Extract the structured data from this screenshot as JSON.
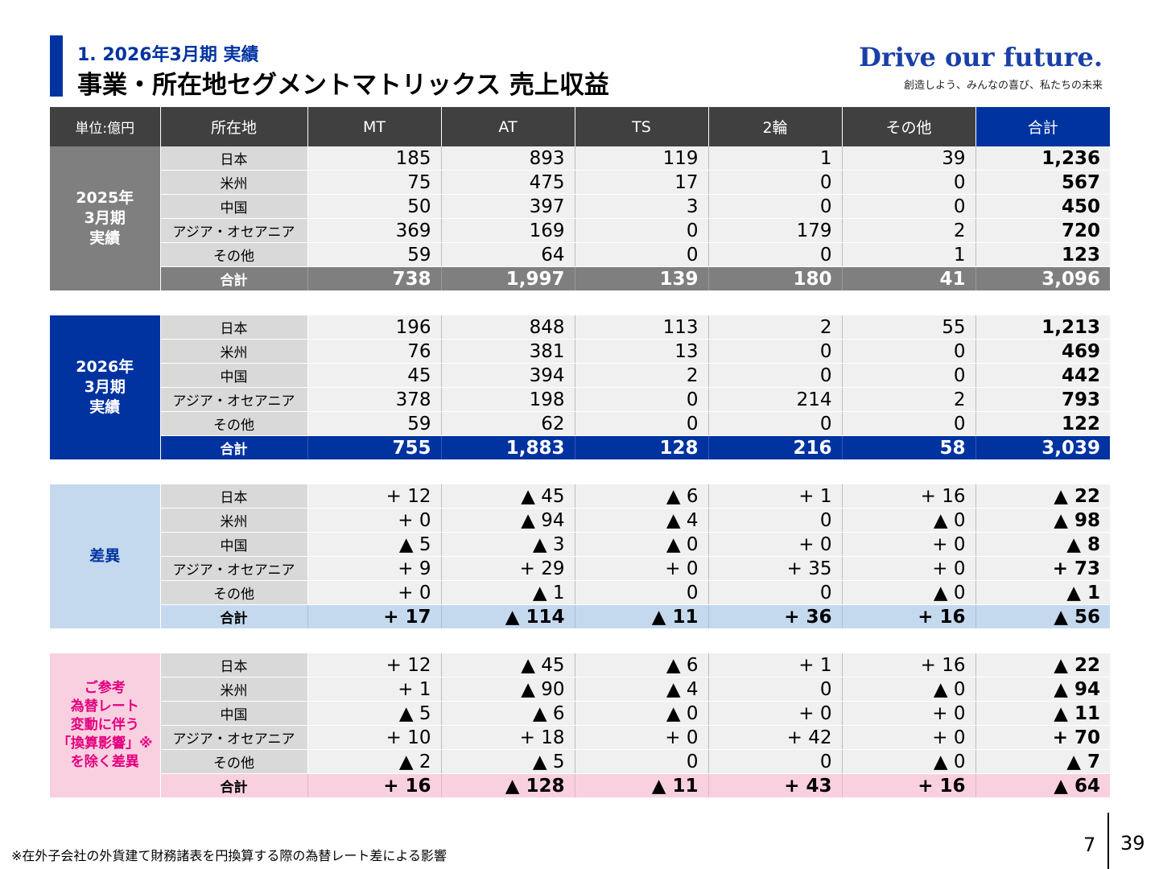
{
  "header": {
    "section": "1. 2026年3月期 実績",
    "title": "事業・所在地セグメントマトリックス 売上収益",
    "brand": "Drive our future.",
    "brand_tagline": "創造しよう、みんなの喜び、私たちの未来"
  },
  "table": {
    "columns": [
      "単位:億円",
      "所在地",
      "MT",
      "AT",
      "TS",
      "2輪",
      "その他",
      "合計"
    ],
    "groups": [
      {
        "label_lines": [
          "2025年",
          "3月期",
          "実績"
        ],
        "rows": [
          {
            "loc": "日本",
            "v": [
              "185",
              "893",
              "119",
              "1",
              "39",
              "1,236"
            ]
          },
          {
            "loc": "米州",
            "v": [
              "75",
              "475",
              "17",
              "0",
              "0",
              "567"
            ]
          },
          {
            "loc": "中国",
            "v": [
              "50",
              "397",
              "3",
              "0",
              "0",
              "450"
            ]
          },
          {
            "loc": "アジア・オセアニア",
            "v": [
              "369",
              "169",
              "0",
              "179",
              "2",
              "720"
            ]
          },
          {
            "loc": "その他",
            "v": [
              "59",
              "64",
              "0",
              "0",
              "1",
              "123"
            ]
          },
          {
            "loc": "合計",
            "v": [
              "738",
              "1,997",
              "139",
              "180",
              "41",
              "3,096"
            ]
          }
        ]
      },
      {
        "label_lines": [
          "2026年",
          "3月期",
          "実績"
        ],
        "rows": [
          {
            "loc": "日本",
            "v": [
              "196",
              "848",
              "113",
              "2",
              "55",
              "1,213"
            ]
          },
          {
            "loc": "米州",
            "v": [
              "76",
              "381",
              "13",
              "0",
              "0",
              "469"
            ]
          },
          {
            "loc": "中国",
            "v": [
              "45",
              "394",
              "2",
              "0",
              "0",
              "442"
            ]
          },
          {
            "loc": "アジア・オセアニア",
            "v": [
              "378",
              "198",
              "0",
              "214",
              "2",
              "793"
            ]
          },
          {
            "loc": "その他",
            "v": [
              "59",
              "62",
              "0",
              "0",
              "0",
              "122"
            ]
          },
          {
            "loc": "合計",
            "v": [
              "755",
              "1,883",
              "128",
              "216",
              "58",
              "3,039"
            ]
          }
        ]
      },
      {
        "label_lines": [
          "差異"
        ],
        "rows": [
          {
            "loc": "日本",
            "v": [
              "+ 12",
              "▲ 45",
              "▲ 6",
              "+ 1",
              "+ 16",
              "▲ 22"
            ]
          },
          {
            "loc": "米州",
            "v": [
              "+ 0",
              "▲ 94",
              "▲ 4",
              "0",
              "▲ 0",
              "▲ 98"
            ]
          },
          {
            "loc": "中国",
            "v": [
              "▲ 5",
              "▲ 3",
              "▲ 0",
              "+ 0",
              "+ 0",
              "▲ 8"
            ]
          },
          {
            "loc": "アジア・オセアニア",
            "v": [
              "+ 9",
              "+ 29",
              "+ 0",
              "+ 35",
              "+ 0",
              "+ 73"
            ]
          },
          {
            "loc": "その他",
            "v": [
              "+ 0",
              "▲ 1",
              "0",
              "0",
              "▲ 0",
              "▲ 1"
            ]
          },
          {
            "loc": "合計",
            "v": [
              "+ 17",
              "▲ 114",
              "▲ 11",
              "+ 36",
              "+ 16",
              "▲ 56"
            ]
          }
        ]
      },
      {
        "label_lines": [
          "ご参考",
          "為替レート",
          "変動に伴う",
          "「換算影響」※",
          "を除く差異"
        ],
        "rows": [
          {
            "loc": "日本",
            "v": [
              "+ 12",
              "▲ 45",
              "▲ 6",
              "+ 1",
              "+ 16",
              "▲ 22"
            ]
          },
          {
            "loc": "米州",
            "v": [
              "+ 1",
              "▲ 90",
              "▲ 4",
              "0",
              "▲ 0",
              "▲ 94"
            ]
          },
          {
            "loc": "中国",
            "v": [
              "▲ 5",
              "▲ 6",
              "▲ 0",
              "+ 0",
              "+ 0",
              "▲ 11"
            ]
          },
          {
            "loc": "アジア・オセアニア",
            "v": [
              "+ 10",
              "+ 18",
              "+ 0",
              "+ 42",
              "+ 0",
              "+ 70"
            ]
          },
          {
            "loc": "その他",
            "v": [
              "▲ 2",
              "▲ 5",
              "0",
              "0",
              "▲ 0",
              "▲ 7"
            ]
          },
          {
            "loc": "合計",
            "v": [
              "+ 16",
              "▲ 128",
              "▲ 11",
              "+ 43",
              "+ 16",
              "▲ 64"
            ]
          }
        ]
      }
    ]
  },
  "footnote": "※在外子会社の外貨建て財務諸表を円換算する際の為替レート差による影響",
  "page": {
    "current": "7",
    "total": "39"
  },
  "colors": {
    "accent_blue": "#0033a0",
    "header_dark": "#404040",
    "group_gray": "#7f7f7f",
    "group_light_blue": "#c5d9ee",
    "group_pink": "#f9d0e0",
    "pink_text": "#e4007f"
  }
}
